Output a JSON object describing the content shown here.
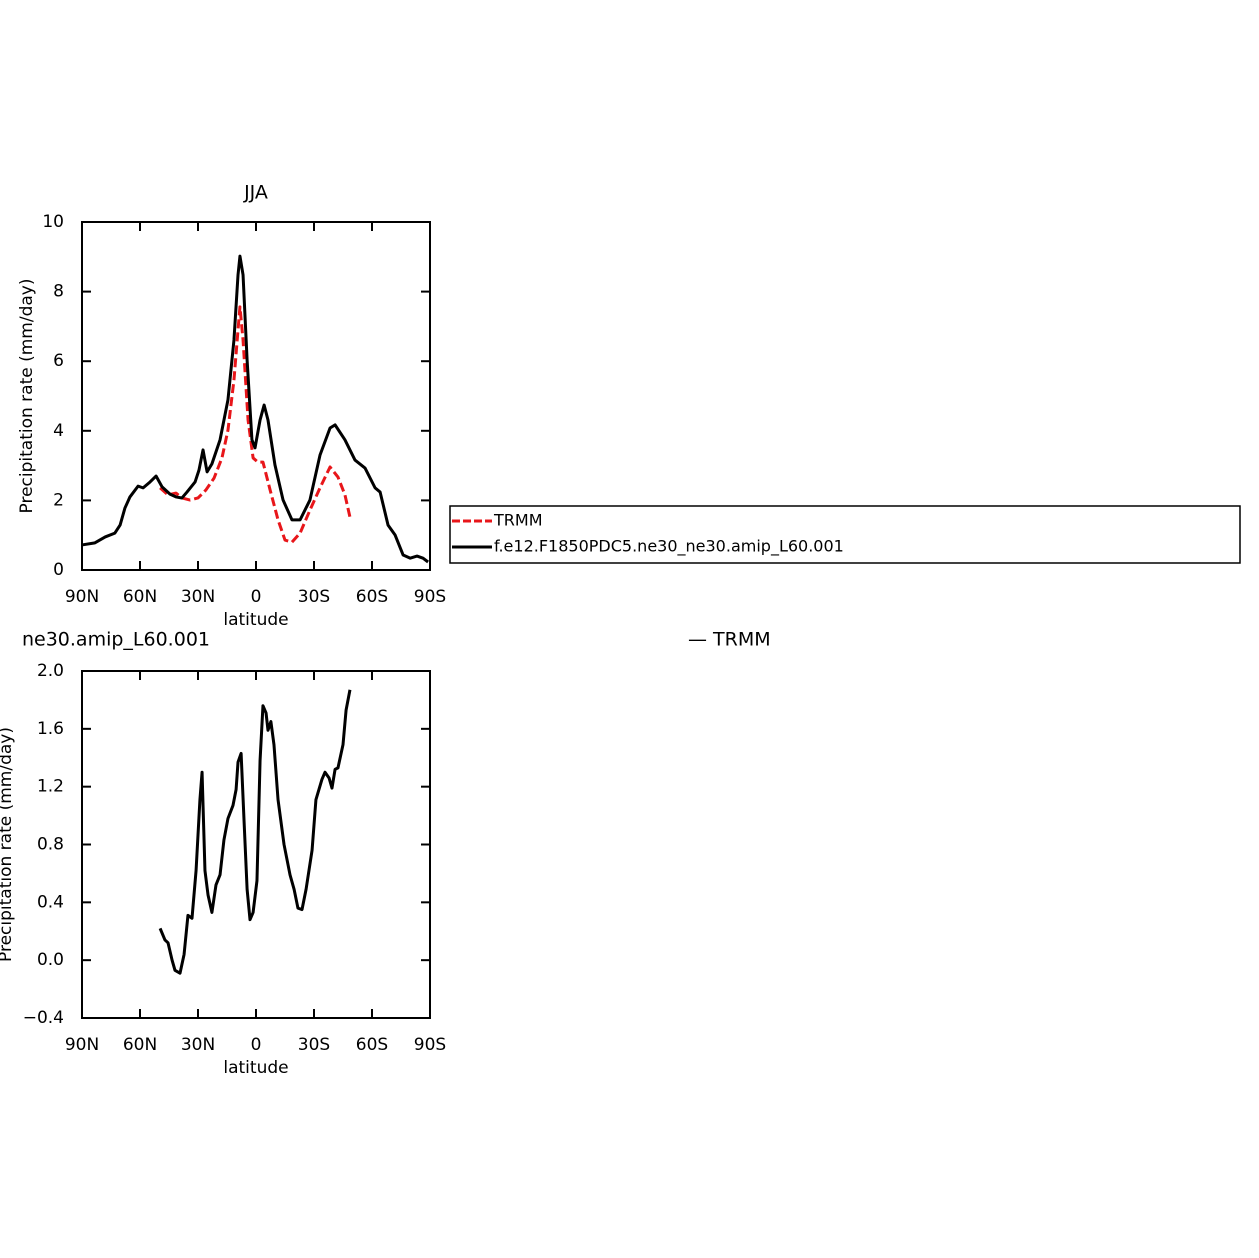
{
  "chart_data": [
    {
      "type": "line",
      "title": "JJA",
      "xlabel": "latitude",
      "ylabel": "Precipitation rate (mm/day)",
      "xlim": [
        90,
        -90
      ],
      "xticks": [
        {
          "value": 90,
          "label": "90N"
        },
        {
          "value": 60,
          "label": "60N"
        },
        {
          "value": 30,
          "label": "30N"
        },
        0,
        {
          "value": -30,
          "label": "30S"
        },
        {
          "value": -60,
          "label": "60S"
        },
        {
          "value": -90,
          "label": "90S"
        }
      ],
      "ylim": [
        0,
        10
      ],
      "yticks": [
        0,
        2,
        4,
        6,
        8,
        10
      ],
      "legend": "outside-right",
      "series": [
        {
          "name": "TRMM",
          "color": "#e8161a",
          "dash": true,
          "x": [
            49.6,
            45.5,
            41.4,
            38.3,
            34.1,
            30,
            25.9,
            21.7,
            17.6,
            14.5,
            11.4,
            9.3,
            8.3,
            6.7,
            4.1,
            1.5,
            -1.0,
            -3.6,
            -7.3,
            -11.4,
            -15.0,
            -18.6,
            -22.8,
            -27.9,
            -33.1,
            -38.3,
            -42.4,
            -46,
            -48.6
          ],
          "values": [
            2.36,
            2.16,
            2.21,
            2.07,
            2.01,
            2.07,
            2.3,
            2.64,
            3.22,
            4.02,
            5.46,
            6.9,
            7.56,
            6.61,
            4.31,
            3.22,
            3.1,
            3.1,
            2.3,
            1.44,
            0.86,
            0.8,
            1.06,
            1.72,
            2.36,
            2.96,
            2.67,
            2.16,
            1.52
          ]
        },
        {
          "name": "f.e12.F1850PDC5.ne30_ne30.amip_L60.001",
          "color": "#000000",
          "dash": false,
          "x": [
            90,
            83.3,
            78,
            73,
            70.3,
            67.8,
            65.2,
            61,
            58.4,
            54.8,
            51.7,
            48.6,
            44.5,
            41.4,
            38.3,
            35.7,
            31.5,
            29.5,
            27.4,
            25.3,
            22.8,
            18.6,
            14.5,
            11.4,
            9.3,
            8.3,
            6.7,
            4.6,
            2.1,
            0.5,
            -2.1,
            -4.2,
            -6.2,
            -9.8,
            -14,
            -18.6,
            -22.8,
            -27.9,
            -33.1,
            -38.3,
            -40.9,
            -46,
            -51.2,
            -56.4,
            -61.6,
            -64.2,
            -68.3,
            -71.9,
            -76.1,
            -79.7,
            -83.3,
            -86.4,
            -89
          ],
          "values": [
            0.72,
            0.78,
            0.95,
            1.06,
            1.29,
            1.78,
            2.1,
            2.41,
            2.36,
            2.53,
            2.7,
            2.39,
            2.18,
            2.1,
            2.07,
            2.24,
            2.53,
            2.87,
            3.45,
            2.82,
            3.05,
            3.74,
            4.89,
            6.61,
            8.48,
            9.02,
            8.48,
            6.03,
            3.74,
            3.51,
            4.31,
            4.74,
            4.31,
            3.02,
            2.01,
            1.44,
            1.44,
            2.01,
            3.3,
            4.08,
            4.17,
            3.74,
            3.16,
            2.93,
            2.36,
            2.24,
            1.29,
            1.01,
            0.43,
            0.34,
            0.4,
            0.34,
            0.23
          ]
        }
      ]
    },
    {
      "type": "line",
      "title": "ne30.amip_L60.001",
      "subtitle": "— TRMM",
      "xlabel": "latitude",
      "ylabel": "Precipitation rate (mm/day)",
      "xlim": [
        90,
        -90
      ],
      "xticks": [
        {
          "value": 90,
          "label": "90N"
        },
        {
          "value": 60,
          "label": "60N"
        },
        {
          "value": 30,
          "label": "30N"
        },
        0,
        {
          "value": -30,
          "label": "30S"
        },
        {
          "value": -60,
          "label": "60S"
        },
        {
          "value": -90,
          "label": "90S"
        }
      ],
      "ylim": [
        -0.4,
        2.0
      ],
      "yticks": [
        {
          "value": -0.4,
          "label": "−0.4"
        },
        {
          "value": 0,
          "label": "0.0"
        },
        0.4,
        0.8,
        1.2,
        1.6,
        {
          "value": 2,
          "label": "2.0"
        }
      ],
      "series": [
        {
          "color": "#000000",
          "dash": false,
          "x": [
            49.6,
            47.1,
            45.5,
            43.4,
            41.9,
            39.3,
            37.2,
            35.2,
            33.1,
            31.0,
            29.0,
            27.9,
            26.4,
            24.8,
            22.8,
            20.7,
            18.6,
            16.6,
            14.5,
            11.9,
            10.3,
            9.3,
            7.7,
            6.2,
            4.6,
            3.1,
            1.5,
            -0.5,
            -2.1,
            -3.6,
            -5.2,
            -6.2,
            -7.7,
            -9.3,
            -11.4,
            -14.5,
            -17.6,
            -19.7,
            -21.7,
            -23.8,
            -25.9,
            -29.0,
            -31.0,
            -34.1,
            -35.7,
            -37.8,
            -39.3,
            -40.9,
            -42.4,
            -45,
            -46.6,
            -48.6
          ],
          "values": [
            0.22,
            0.14,
            0.12,
            0.0,
            -0.07,
            -0.09,
            0.04,
            0.31,
            0.29,
            0.62,
            1.11,
            1.3,
            0.62,
            0.45,
            0.33,
            0.52,
            0.59,
            0.83,
            0.98,
            1.07,
            1.18,
            1.37,
            1.43,
            0.97,
            0.49,
            0.28,
            0.33,
            0.55,
            1.38,
            1.76,
            1.71,
            1.59,
            1.65,
            1.49,
            1.11,
            0.8,
            0.59,
            0.49,
            0.36,
            0.35,
            0.49,
            0.76,
            1.11,
            1.25,
            1.3,
            1.26,
            1.19,
            1.32,
            1.33,
            1.49,
            1.73,
            1.87
          ]
        }
      ]
    }
  ]
}
